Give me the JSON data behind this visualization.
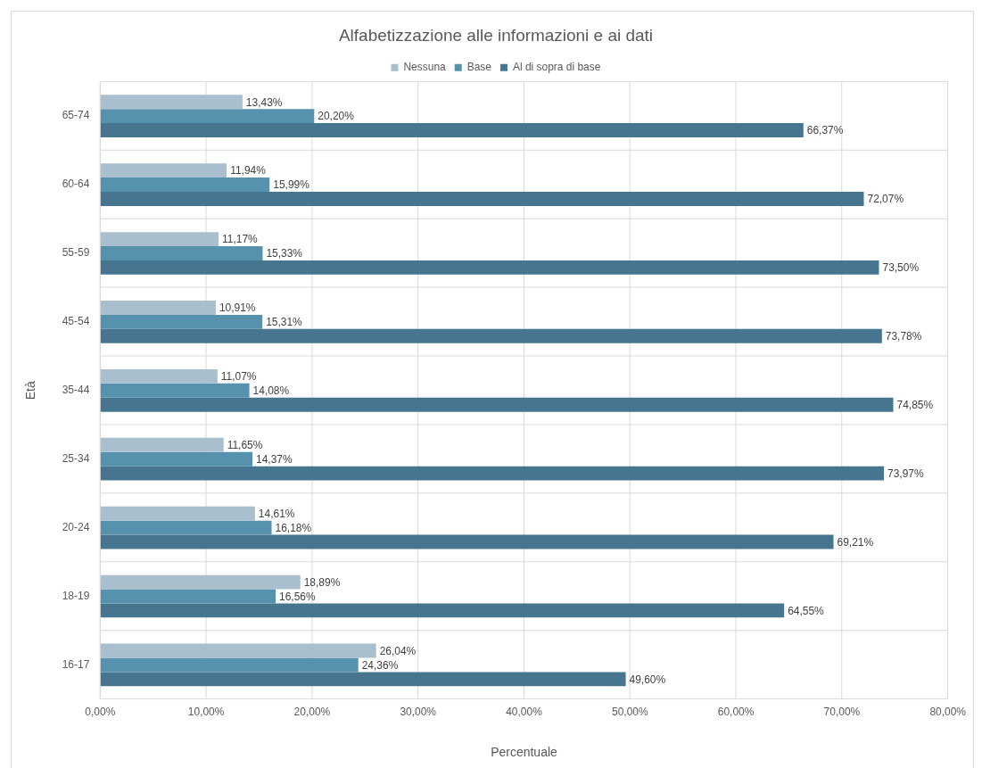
{
  "chart_data": {
    "type": "bar",
    "orientation": "horizontal",
    "title": "Alfabetizzazione alle informazioni e ai dati",
    "xlabel": "Percentuale",
    "ylabel": "Età",
    "categories": [
      "65-74",
      "60-64",
      "55-59",
      "45-54",
      "35-44",
      "25-34",
      "20-24",
      "18-19",
      "16-17"
    ],
    "series": [
      {
        "name": "Nessuna",
        "color": "#a9bfcd",
        "values": [
          13.43,
          11.94,
          11.17,
          10.91,
          11.07,
          11.65,
          14.61,
          18.89,
          26.04
        ],
        "value_labels": [
          "13,43%",
          "11,94%",
          "11,17%",
          "10,91%",
          "11,07%",
          "11,65%",
          "14,61%",
          "18,89%",
          "26,04%"
        ]
      },
      {
        "name": "Base",
        "color": "#5691ae",
        "values": [
          20.2,
          15.99,
          15.33,
          15.31,
          14.08,
          14.37,
          16.18,
          16.56,
          24.36
        ],
        "value_labels": [
          "20,20%",
          "15,99%",
          "15,33%",
          "15,31%",
          "14,08%",
          "14,37%",
          "16,18%",
          "16,56%",
          "24,36%"
        ]
      },
      {
        "name": "Al di sopra di base",
        "color": "#46768f",
        "values": [
          66.37,
          72.07,
          73.5,
          73.78,
          74.85,
          73.97,
          69.21,
          64.55,
          49.6
        ],
        "value_labels": [
          "66,37%",
          "72,07%",
          "73,50%",
          "73,78%",
          "74,85%",
          "73,97%",
          "69,21%",
          "64,55%",
          "49,60%"
        ]
      }
    ],
    "xlim": [
      0,
      80
    ],
    "xticks": [
      {
        "value": 0,
        "label": "0,00%"
      },
      {
        "value": 10,
        "label": "10,00%"
      },
      {
        "value": 20,
        "label": "20,00%"
      },
      {
        "value": 30,
        "label": "30,00%"
      },
      {
        "value": 40,
        "label": "40,00%"
      },
      {
        "value": 50,
        "label": "50,00%"
      },
      {
        "value": 60,
        "label": "60,00%"
      },
      {
        "value": 70,
        "label": "70,00%"
      },
      {
        "value": 80,
        "label": "80,00%"
      }
    ],
    "grid": true,
    "legend": "top"
  }
}
